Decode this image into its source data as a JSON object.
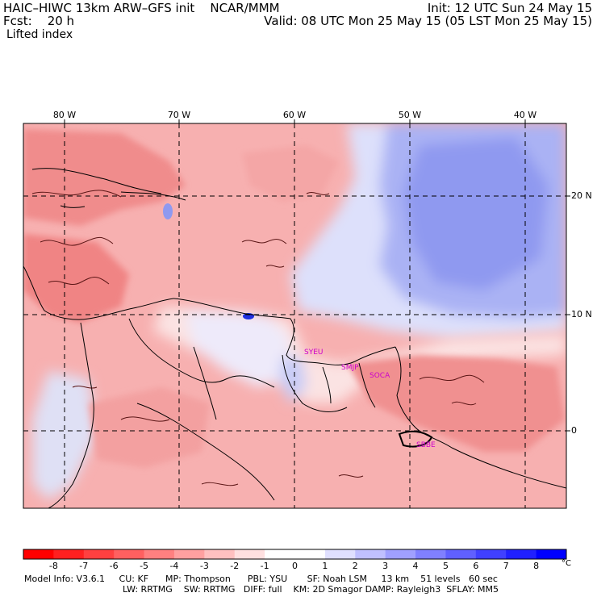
{
  "header": {
    "line1_left": "HAIC–HIWC 13km ARW–GFS init    NCAR/MMM",
    "line2_left": "Fcst:    20 h",
    "line3_left": "Lifted index",
    "line1_right": "Init: 12 UTC Sun 24 May 15",
    "line2_right": "Valid: 08 UTC Mon 25 May 15 (05 LST Mon 25 May 15)"
  },
  "map": {
    "lon_labels": [
      "80 W",
      "70 W",
      "60 W",
      "50 W",
      "40 W"
    ],
    "lat_labels": [
      "20 N",
      "10 N",
      "0"
    ],
    "stations": [
      "SYEU",
      "SMJP",
      "SOCA",
      "SBBE"
    ],
    "colors": {
      "strong_unstable": "#f08080",
      "unstable": "#f7a9a9",
      "near_neutral": "#fde0e0",
      "stable": "#c8cef8",
      "strong_stable": "#8c96f0",
      "contour": "#551111",
      "coast": "#000000"
    }
  },
  "colorbar": {
    "labels": [
      "-8",
      "-7",
      "-6",
      "-5",
      "-4",
      "-3",
      "-2",
      "-1",
      "0",
      "1",
      "2",
      "3",
      "4",
      "5",
      "6",
      "7",
      "8"
    ],
    "unit": "°C",
    "colors": [
      "#ff0000",
      "#ff2020",
      "#ff4040",
      "#ff6060",
      "#ff8080",
      "#ffa0a0",
      "#ffc0c0",
      "#ffe0e0",
      "#ffffff",
      "#ffffff",
      "#e0e0ff",
      "#c0c0ff",
      "#a0a0ff",
      "#8080ff",
      "#6060ff",
      "#4040ff",
      "#2020ff",
      "#0000ff"
    ]
  },
  "footer": {
    "line1": "Model Info: V3.6.1     CU: KF      MP: Thompson      PBL: YSU       SF: Noah LSM     13 km    51 levels   60 sec",
    "line2": "LW: RRTMG    SW: RRTMG   DIFF: full    KM: 2D Smagor DAMP: Rayleigh3  SFLAY: MM5"
  }
}
